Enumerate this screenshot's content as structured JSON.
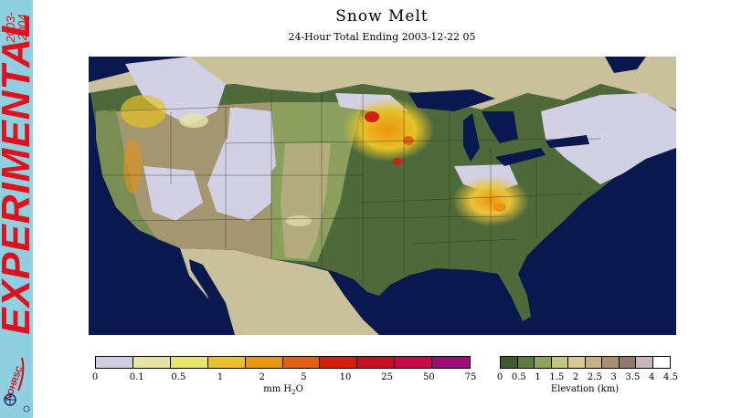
{
  "banner": {
    "label": "EXPERIMENTAL",
    "season_start": "2003-",
    "season_end": "2004",
    "logo_text": "NOHRSC"
  },
  "header": {
    "title": "Snow Melt",
    "subtitle": "24-Hour Total Ending 2003-12-22 05"
  },
  "map": {
    "region": "Contiguous United States",
    "water_color": "#0a1850",
    "land_low_color": "#4e6a3a",
    "land_mid_color": "#8aa05c",
    "land_high_color": "#b8ae84",
    "no_snow_land_color": "#c9c19a",
    "snow_cover_color": "#d2d0e4"
  },
  "melt_legend": {
    "colors": [
      "#cfcde1",
      "#e6e2a8",
      "#e9e46a",
      "#e5c12a",
      "#ec9410",
      "#e65f10",
      "#d41e10",
      "#c60f20",
      "#c80a4a",
      "#9c0e76"
    ],
    "ticks": [
      "0",
      "0.1",
      "0.5",
      "1",
      "2",
      "5",
      "10",
      "25",
      "50",
      "75"
    ],
    "unit_main": "mm H",
    "unit_sub": "2",
    "unit_end": "O"
  },
  "elev_legend": {
    "colors": [
      "#3f5a30",
      "#5d7a40",
      "#8fa15a",
      "#c2c488",
      "#d8c898",
      "#c6b084",
      "#a89070",
      "#8e7a66",
      "#c9b4c0",
      "#ffffff"
    ],
    "ticks": [
      "0",
      "0.5",
      "1",
      "1.5",
      "2",
      "2.5",
      "3",
      "3.5",
      "4",
      "4.5"
    ],
    "title": "Elevation (km)"
  }
}
